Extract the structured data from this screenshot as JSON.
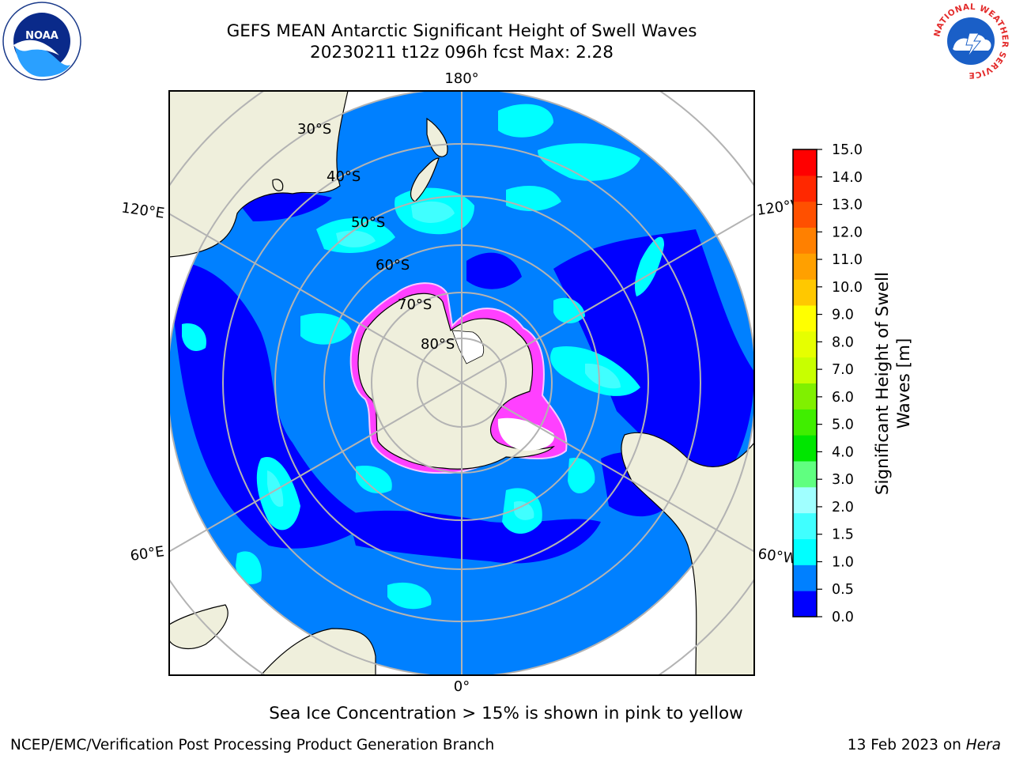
{
  "header": {
    "title_line1": "GEFS MEAN Antarctic Significant Height of Swell Waves",
    "title_line2": "20230211 t12z 096h fcst   Max: 2.28"
  },
  "logos": {
    "left": "noaa-logo",
    "right": "national-weather-service-logo",
    "noaa_text": "NOAA",
    "nws_ring_text": "NATIONAL WEATHER SERVICE"
  },
  "map": {
    "projection": "south-polar-stereographic",
    "colors": {
      "ocean_0_0_5": "#0000ff",
      "ocean_0_5_1_0": "#0080ff",
      "ocean_1_0_1_5": "#00ffff",
      "ocean_1_5_2_0": "#40ffff",
      "land": "#efefdc",
      "sea_ice": "#ff40ff",
      "graticule": "#b3b3b3"
    },
    "longitude_labels": {
      "top": "180°",
      "bottom": "0°",
      "upper_left": "120°E",
      "lower_left": "60°E",
      "upper_right": "120°W",
      "lower_right": "60°W"
    },
    "latitude_labels": [
      "30°S",
      "40°S",
      "50°S",
      "60°S",
      "70°S",
      "80°S"
    ]
  },
  "colorbar": {
    "label_line1": "Significant Height of Swell",
    "label_line2": "Waves [m]",
    "ticks": [
      "0.0",
      "0.5",
      "1.0",
      "1.5",
      "2.0",
      "3.0",
      "4.0",
      "5.0",
      "6.0",
      "7.0",
      "8.0",
      "9.0",
      "10.0",
      "11.0",
      "12.0",
      "13.0",
      "14.0",
      "15.0"
    ],
    "colors": [
      "#0000ff",
      "#0080ff",
      "#00ffff",
      "#40ffff",
      "#a0ffff",
      "#60ff80",
      "#00e600",
      "#40ee00",
      "#80f000",
      "#c8ff00",
      "#e6ff00",
      "#ffff00",
      "#ffc800",
      "#ffa000",
      "#ff8000",
      "#ff5000",
      "#ff2800",
      "#ff0000"
    ]
  },
  "caption": "Sea Ice Concentration > 15% is shown in pink to yellow",
  "footer": {
    "left": "NCEP/EMC/Verification Post Processing Product Generation Branch",
    "right_date": "13 Feb 2023 on ",
    "right_host": "Hera"
  }
}
